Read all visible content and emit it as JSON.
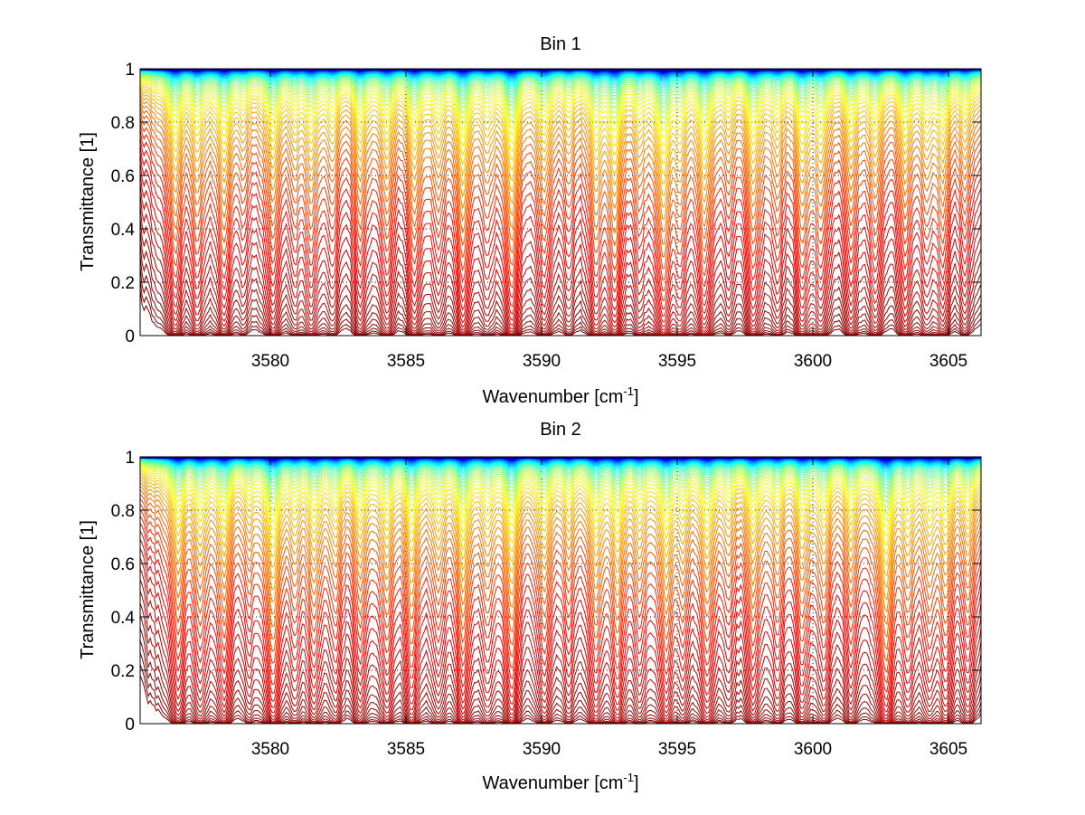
{
  "figure": {
    "background": "#ffffff"
  },
  "chart_data": [
    {
      "type": "line",
      "title": "Bin 1",
      "xlabel": "Wavenumber [cm",
      "xlabel_sup": "-1",
      "xlabel_end": "]",
      "ylabel": "Transmittance [1]",
      "xlim": [
        3575.2,
        3606.2
      ],
      "ylim": [
        0,
        1
      ],
      "xticks": [
        3580,
        3585,
        3590,
        3595,
        3600,
        3605
      ],
      "xtick_labels": [
        "3580",
        "3585",
        "3590",
        "3595",
        "3600",
        "3605"
      ],
      "yticks": [
        0,
        0.2,
        0.4,
        0.6,
        0.8,
        1
      ],
      "ytick_labels": [
        "0",
        "0.2",
        "0.4",
        "0.6",
        "0.8",
        "1"
      ],
      "grid": true,
      "n_curves": 60,
      "colormap": "jet-reversed (dark red → orange → yellow → cyan → dark blue)",
      "description": "Family of transmittance spectra for increasing absorber amount; top curves ≈1 (blue), bottom curves ≈0 (dark red).",
      "absorption_lines": [
        {
          "nu": 3576.5,
          "strength": 1.4
        },
        {
          "nu": 3577.3,
          "strength": 1.1
        },
        {
          "nu": 3578.3,
          "strength": 1.3
        },
        {
          "nu": 3579.0,
          "strength": 0.6
        },
        {
          "nu": 3580.1,
          "strength": 1.2
        },
        {
          "nu": 3580.9,
          "strength": 0.7
        },
        {
          "nu": 3581.5,
          "strength": 1.0
        },
        {
          "nu": 3582.3,
          "strength": 0.7
        },
        {
          "nu": 3583.3,
          "strength": 1.1
        },
        {
          "nu": 3584.3,
          "strength": 1.0
        },
        {
          "nu": 3585.3,
          "strength": 1.3
        },
        {
          "nu": 3586.2,
          "strength": 0.7
        },
        {
          "nu": 3587.1,
          "strength": 1.7
        },
        {
          "nu": 3588.0,
          "strength": 0.6
        },
        {
          "nu": 3588.9,
          "strength": 1.9
        },
        {
          "nu": 3590.1,
          "strength": 1.0
        },
        {
          "nu": 3591.0,
          "strength": 0.7
        },
        {
          "nu": 3592.0,
          "strength": 1.1
        },
        {
          "nu": 3592.7,
          "strength": 1.6
        },
        {
          "nu": 3593.6,
          "strength": 0.7
        },
        {
          "nu": 3594.5,
          "strength": 1.8
        },
        {
          "nu": 3595.1,
          "strength": 1.0
        },
        {
          "nu": 3596.0,
          "strength": 1.4
        },
        {
          "nu": 3596.9,
          "strength": 0.6
        },
        {
          "nu": 3597.8,
          "strength": 1.3
        },
        {
          "nu": 3598.7,
          "strength": 0.8
        },
        {
          "nu": 3599.6,
          "strength": 1.3
        },
        {
          "nu": 3600.3,
          "strength": 1.0
        },
        {
          "nu": 3601.4,
          "strength": 1.1
        },
        {
          "nu": 3602.3,
          "strength": 0.9
        },
        {
          "nu": 3603.4,
          "strength": 1.2
        },
        {
          "nu": 3604.2,
          "strength": 0.7
        },
        {
          "nu": 3604.8,
          "strength": 1.1
        },
        {
          "nu": 3605.6,
          "strength": 0.8
        }
      ]
    },
    {
      "type": "line",
      "title": "Bin 2",
      "xlabel": "Wavenumber [cm",
      "xlabel_sup": "-1",
      "xlabel_end": "]",
      "ylabel": "Transmittance [1]",
      "xlim": [
        3575.2,
        3606.2
      ],
      "ylim": [
        0,
        1
      ],
      "xticks": [
        3580,
        3585,
        3590,
        3595,
        3600,
        3605
      ],
      "xtick_labels": [
        "3580",
        "3585",
        "3590",
        "3595",
        "3600",
        "3605"
      ],
      "yticks": [
        0,
        0.2,
        0.4,
        0.6,
        0.8,
        1
      ],
      "ytick_labels": [
        "0",
        "0.2",
        "0.4",
        "0.6",
        "0.8",
        "1"
      ],
      "grid": true,
      "n_curves": 60,
      "colormap": "jet-reversed (dark red → orange → yellow → cyan → dark blue)",
      "description": "Family of transmittance spectra for increasing absorber amount; top curves ≈1 (blue), bottom curves ≈0 (dark red).",
      "absorption_lines": [
        {
          "nu": 3576.6,
          "strength": 1.3
        },
        {
          "nu": 3577.4,
          "strength": 1.0
        },
        {
          "nu": 3578.3,
          "strength": 1.2
        },
        {
          "nu": 3579.2,
          "strength": 0.6
        },
        {
          "nu": 3580.1,
          "strength": 1.7
        },
        {
          "nu": 3580.9,
          "strength": 0.8
        },
        {
          "nu": 3581.6,
          "strength": 1.0
        },
        {
          "nu": 3582.4,
          "strength": 0.8
        },
        {
          "nu": 3583.3,
          "strength": 1.1
        },
        {
          "nu": 3584.3,
          "strength": 1.0
        },
        {
          "nu": 3585.2,
          "strength": 1.4
        },
        {
          "nu": 3586.2,
          "strength": 0.8
        },
        {
          "nu": 3587.1,
          "strength": 1.6
        },
        {
          "nu": 3588.0,
          "strength": 0.7
        },
        {
          "nu": 3588.9,
          "strength": 1.7
        },
        {
          "nu": 3590.1,
          "strength": 1.0
        },
        {
          "nu": 3591.0,
          "strength": 0.8
        },
        {
          "nu": 3592.0,
          "strength": 1.1
        },
        {
          "nu": 3592.8,
          "strength": 1.4
        },
        {
          "nu": 3593.6,
          "strength": 0.8
        },
        {
          "nu": 3594.6,
          "strength": 1.4
        },
        {
          "nu": 3595.2,
          "strength": 0.9
        },
        {
          "nu": 3596.1,
          "strength": 1.2
        },
        {
          "nu": 3596.9,
          "strength": 0.7
        },
        {
          "nu": 3597.8,
          "strength": 1.1
        },
        {
          "nu": 3598.7,
          "strength": 0.8
        },
        {
          "nu": 3599.6,
          "strength": 1.1
        },
        {
          "nu": 3600.4,
          "strength": 0.9
        },
        {
          "nu": 3601.4,
          "strength": 1.0
        },
        {
          "nu": 3602.7,
          "strength": 2.0
        },
        {
          "nu": 3603.5,
          "strength": 1.0
        },
        {
          "nu": 3604.3,
          "strength": 0.8
        },
        {
          "nu": 3604.9,
          "strength": 1.2
        },
        {
          "nu": 3605.7,
          "strength": 0.9
        }
      ]
    }
  ]
}
